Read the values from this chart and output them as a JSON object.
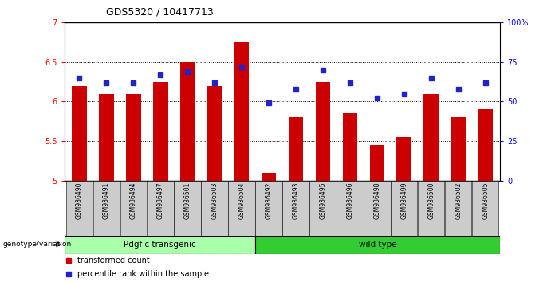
{
  "title": "GDS5320 / 10417713",
  "categories": [
    "GSM936490",
    "GSM936491",
    "GSM936494",
    "GSM936497",
    "GSM936501",
    "GSM936503",
    "GSM936504",
    "GSM936492",
    "GSM936493",
    "GSM936495",
    "GSM936496",
    "GSM936498",
    "GSM936499",
    "GSM936500",
    "GSM936502",
    "GSM936505"
  ],
  "bar_values": [
    6.2,
    6.1,
    6.1,
    6.25,
    6.5,
    6.2,
    6.75,
    5.1,
    5.8,
    6.25,
    5.85,
    5.45,
    5.55,
    6.1,
    5.8,
    5.9
  ],
  "bar_base": 5.0,
  "dot_percentiles": [
    65,
    62,
    62,
    67,
    69,
    62,
    72,
    49,
    58,
    70,
    62,
    52,
    55,
    65,
    58,
    62
  ],
  "ylim_left": [
    5.0,
    7.0
  ],
  "ylim_right": [
    0,
    100
  ],
  "yticks_left": [
    5.0,
    5.5,
    6.0,
    6.5,
    7.0
  ],
  "ytick_labels_left": [
    "5",
    "5.5",
    "6",
    "6.5",
    "7"
  ],
  "yticks_right": [
    0,
    25,
    50,
    75,
    100
  ],
  "ytick_labels_right": [
    "0",
    "25",
    "50",
    "75",
    "100%"
  ],
  "gridlines": [
    5.5,
    6.0,
    6.5
  ],
  "group1_label": "Pdgf-c transgenic",
  "group2_label": "wild type",
  "group1_count": 7,
  "group2_count": 9,
  "bar_color": "#cc0000",
  "dot_color": "#2222cc",
  "group1_color": "#aaffaa",
  "group2_color": "#33cc33",
  "xticklabel_bg": "#cccccc",
  "legend_bar_label": "transformed count",
  "legend_dot_label": "percentile rank within the sample",
  "genotype_label": "genotype/variation",
  "fig_width": 7.01,
  "fig_height": 3.54,
  "dpi": 100
}
